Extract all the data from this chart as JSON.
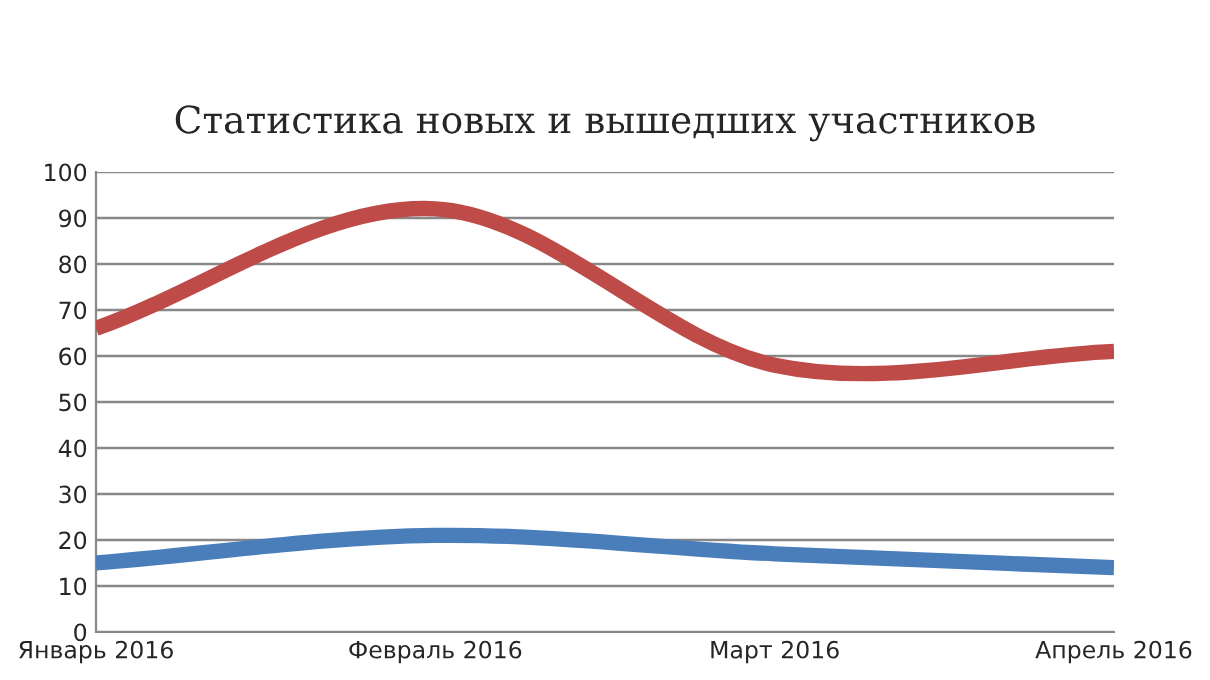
{
  "chart_data": {
    "type": "line",
    "title": "Статистика новых и вышедших участников",
    "categories": [
      "Январь 2016",
      "Февраль 2016",
      "Март 2016",
      "Апрель 2016"
    ],
    "series": [
      {
        "color": "#be4b48",
        "values": [
          66,
          92,
          58,
          61
        ]
      },
      {
        "color": "#4a7ebb",
        "values": [
          15,
          21,
          17,
          14
        ]
      }
    ],
    "ylim": [
      0,
      100
    ],
    "yticks": [
      0,
      10,
      20,
      30,
      40,
      50,
      60,
      70,
      80,
      90,
      100
    ],
    "grid": "y",
    "marker": "none",
    "line_style": "solid"
  }
}
